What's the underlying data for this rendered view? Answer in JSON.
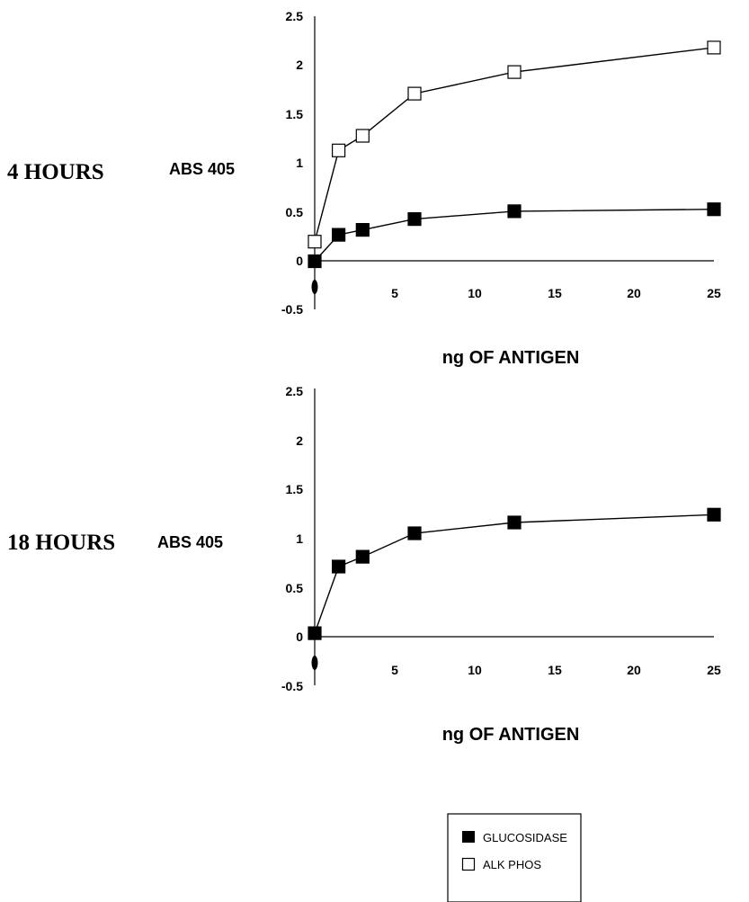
{
  "chart_data": [
    {
      "type": "line",
      "panel_label": "4 HOURS",
      "ylabel": "ABS 405",
      "xlabel": "ng OF ANTIGEN",
      "xlim": [
        0,
        25
      ],
      "ylim": [
        -0.5,
        2.5
      ],
      "x_ticks": [
        "0",
        "5",
        "10",
        "15",
        "20",
        "25"
      ],
      "y_ticks": [
        "2.5",
        "2",
        "1.5",
        "1",
        "0.5",
        "0",
        "-0.5"
      ],
      "grid": false,
      "series": [
        {
          "name": "ALK PHOS",
          "marker": "open-square",
          "x": [
            0,
            1.5,
            3,
            6.25,
            12.5,
            25
          ],
          "values": [
            0.2,
            1.13,
            1.28,
            1.71,
            1.93,
            2.18
          ]
        },
        {
          "name": "GLUCOSIDASE",
          "marker": "filled-square",
          "x": [
            0,
            1.5,
            3,
            6.25,
            12.5,
            25
          ],
          "values": [
            0.0,
            0.27,
            0.32,
            0.43,
            0.51,
            0.53
          ]
        }
      ]
    },
    {
      "type": "line",
      "panel_label": "18 HOURS",
      "ylabel": "ABS 405",
      "xlabel": "ng OF ANTIGEN",
      "xlim": [
        0,
        25
      ],
      "ylim": [
        -0.5,
        2.5
      ],
      "x_ticks": [
        "0",
        "5",
        "10",
        "15",
        "20",
        "25"
      ],
      "y_ticks": [
        "2.5",
        "2",
        "1.5",
        "1",
        "0.5",
        "0",
        "-0.5"
      ],
      "grid": false,
      "series": [
        {
          "name": "GLUCOSIDASE",
          "marker": "filled-square",
          "x": [
            0,
            1.5,
            3,
            6.25,
            12.5,
            25
          ],
          "values": [
            0.04,
            0.72,
            0.82,
            1.06,
            1.17,
            1.25
          ]
        }
      ]
    }
  ],
  "legend": {
    "placement": "bottom-right",
    "items": [
      {
        "label": "GLUCOSIDASE",
        "marker": "filled-square"
      },
      {
        "label": "ALK PHOS",
        "marker": "open-square"
      }
    ]
  }
}
